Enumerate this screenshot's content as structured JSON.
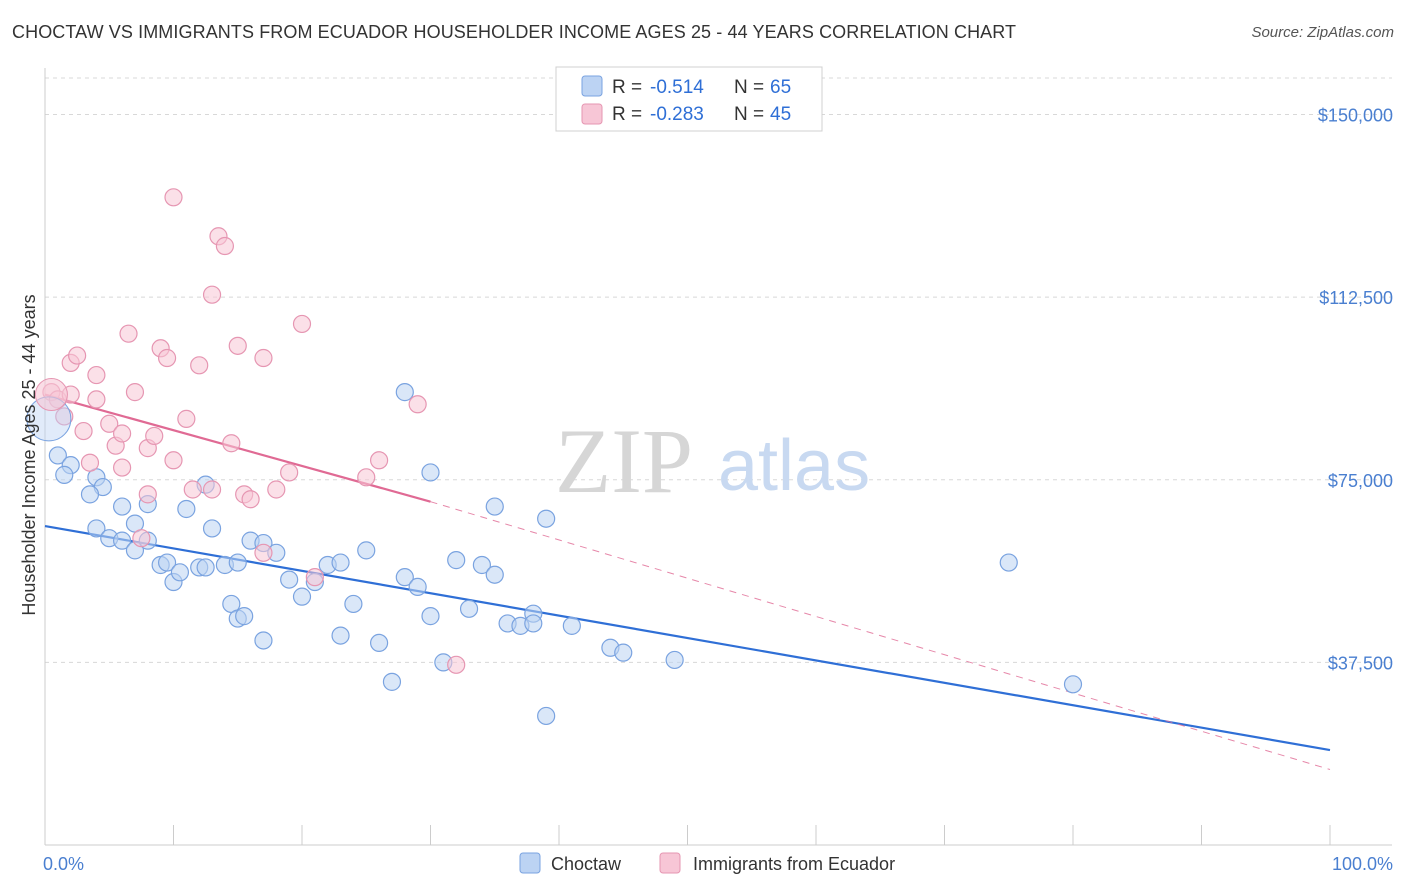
{
  "title": "CHOCTAW VS IMMIGRANTS FROM ECUADOR HOUSEHOLDER INCOME AGES 25 - 44 YEARS CORRELATION CHART",
  "source": "Source: ZipAtlas.com",
  "watermark": {
    "zip": "ZIP",
    "atlas": "atlas"
  },
  "colors": {
    "blue": "#2f6fd6",
    "blue_fill": "#bcd3f3",
    "pink": "#e06a94",
    "pink_fill": "#f7c6d6",
    "grid": "#d8d8d8",
    "axis_text": "#4a7fd0"
  },
  "legend": {
    "rows": [
      {
        "r_label": "R =",
        "r_value": "-0.514",
        "n_label": "N =",
        "n_value": "65"
      },
      {
        "r_label": "R =",
        "r_value": "-0.283",
        "n_label": "N =",
        "n_value": "45"
      }
    ]
  },
  "chart_data": {
    "type": "scatter",
    "title": "CHOCTAW VS IMMIGRANTS FROM ECUADOR HOUSEHOLDER INCOME AGES 25 - 44 YEARS CORRELATION CHART",
    "xlabel": "",
    "ylabel": "Householder Income Ages 25 - 44 years",
    "xlim": [
      0,
      100
    ],
    "ylim": [
      0,
      157500
    ],
    "x_tick_labels": [
      "0.0%",
      "100.0%"
    ],
    "y_ticks": [
      37500,
      75000,
      112500,
      150000
    ],
    "y_tick_labels": [
      "$37,500",
      "$75,000",
      "$112,500",
      "$150,000"
    ],
    "grid": true,
    "legend_position": "top-center",
    "series": [
      {
        "name": "Choctaw",
        "color": "#2f6fd6",
        "r": -0.514,
        "n": 65,
        "trend": {
          "x": [
            0,
            100
          ],
          "y": [
            65500,
            19500
          ],
          "style": "solid"
        },
        "points": [
          [
            1,
            80000
          ],
          [
            2,
            78000
          ],
          [
            1.5,
            76000
          ],
          [
            4,
            75500
          ],
          [
            4.5,
            73500
          ],
          [
            3.5,
            72000
          ],
          [
            4,
            65000
          ],
          [
            6,
            69500
          ],
          [
            7,
            66000
          ],
          [
            8,
            70000
          ],
          [
            5,
            63000
          ],
          [
            6,
            62500
          ],
          [
            7,
            60500
          ],
          [
            8,
            62500
          ],
          [
            9,
            57500
          ],
          [
            9.5,
            58000
          ],
          [
            10,
            54000
          ],
          [
            10.5,
            56000
          ],
          [
            11,
            69000
          ],
          [
            12,
            57000
          ],
          [
            12.5,
            74000
          ],
          [
            12.5,
            57000
          ],
          [
            13,
            65000
          ],
          [
            14,
            57500
          ],
          [
            14.5,
            49500
          ],
          [
            15,
            46500
          ],
          [
            16,
            62500
          ],
          [
            15,
            58000
          ],
          [
            15.5,
            47000
          ],
          [
            17,
            42000
          ],
          [
            17,
            62000
          ],
          [
            18,
            60000
          ],
          [
            19,
            54500
          ],
          [
            20,
            51000
          ],
          [
            21,
            54000
          ],
          [
            22,
            57500
          ],
          [
            23,
            43000
          ],
          [
            23,
            58000
          ],
          [
            24,
            49500
          ],
          [
            25,
            60500
          ],
          [
            26,
            41500
          ],
          [
            27,
            33500
          ],
          [
            28,
            55000
          ],
          [
            28,
            93000
          ],
          [
            29,
            53000
          ],
          [
            30,
            47000
          ],
          [
            30,
            76500
          ],
          [
            31,
            37500
          ],
          [
            32,
            58500
          ],
          [
            33,
            48500
          ],
          [
            34,
            57500
          ],
          [
            35,
            55500
          ],
          [
            35,
            69500
          ],
          [
            36,
            45500
          ],
          [
            37,
            45000
          ],
          [
            38,
            47500
          ],
          [
            38,
            45500
          ],
          [
            39,
            67000
          ],
          [
            39,
            26500
          ],
          [
            41,
            45000
          ],
          [
            44,
            40500
          ],
          [
            45,
            39500
          ],
          [
            49,
            38000
          ],
          [
            75,
            58000
          ],
          [
            80,
            33000
          ]
        ]
      },
      {
        "name": "Immigrants from Ecuador",
        "color": "#e06a94",
        "r": -0.283,
        "n": 45,
        "trend": {
          "x": [
            0,
            30
          ],
          "y": [
            92500,
            70500
          ],
          "style": "solid",
          "extension": {
            "x": [
              30,
              100
            ],
            "y": [
              70500,
              15500
            ],
            "style": "dashed"
          }
        },
        "points": [
          [
            0.5,
            93000
          ],
          [
            1,
            91500
          ],
          [
            1.5,
            88000
          ],
          [
            2,
            92500
          ],
          [
            2,
            99000
          ],
          [
            2.5,
            100500
          ],
          [
            3,
            85000
          ],
          [
            3.5,
            78500
          ],
          [
            4,
            96500
          ],
          [
            4,
            91500
          ],
          [
            5,
            86500
          ],
          [
            5.5,
            82000
          ],
          [
            6,
            84500
          ],
          [
            6,
            77500
          ],
          [
            6.5,
            105000
          ],
          [
            7,
            93000
          ],
          [
            7.5,
            63000
          ],
          [
            8,
            81500
          ],
          [
            8,
            72000
          ],
          [
            8.5,
            84000
          ],
          [
            9,
            102000
          ],
          [
            9.5,
            100000
          ],
          [
            10,
            79000
          ],
          [
            10,
            133000
          ],
          [
            11,
            87500
          ],
          [
            11.5,
            73000
          ],
          [
            12,
            98500
          ],
          [
            13,
            113000
          ],
          [
            13,
            73000
          ],
          [
            13.5,
            125000
          ],
          [
            14,
            123000
          ],
          [
            14.5,
            82500
          ],
          [
            15,
            102500
          ],
          [
            15.5,
            72000
          ],
          [
            16,
            71000
          ],
          [
            17,
            100000
          ],
          [
            17,
            60000
          ],
          [
            18,
            73000
          ],
          [
            19,
            76500
          ],
          [
            20,
            107000
          ],
          [
            21,
            55000
          ],
          [
            26,
            79000
          ],
          [
            29,
            90500
          ],
          [
            32,
            37000
          ],
          [
            25,
            75500
          ]
        ]
      }
    ]
  },
  "bottom_legend": [
    {
      "label": "Choctaw"
    },
    {
      "label": "Immigrants from Ecuador"
    }
  ]
}
